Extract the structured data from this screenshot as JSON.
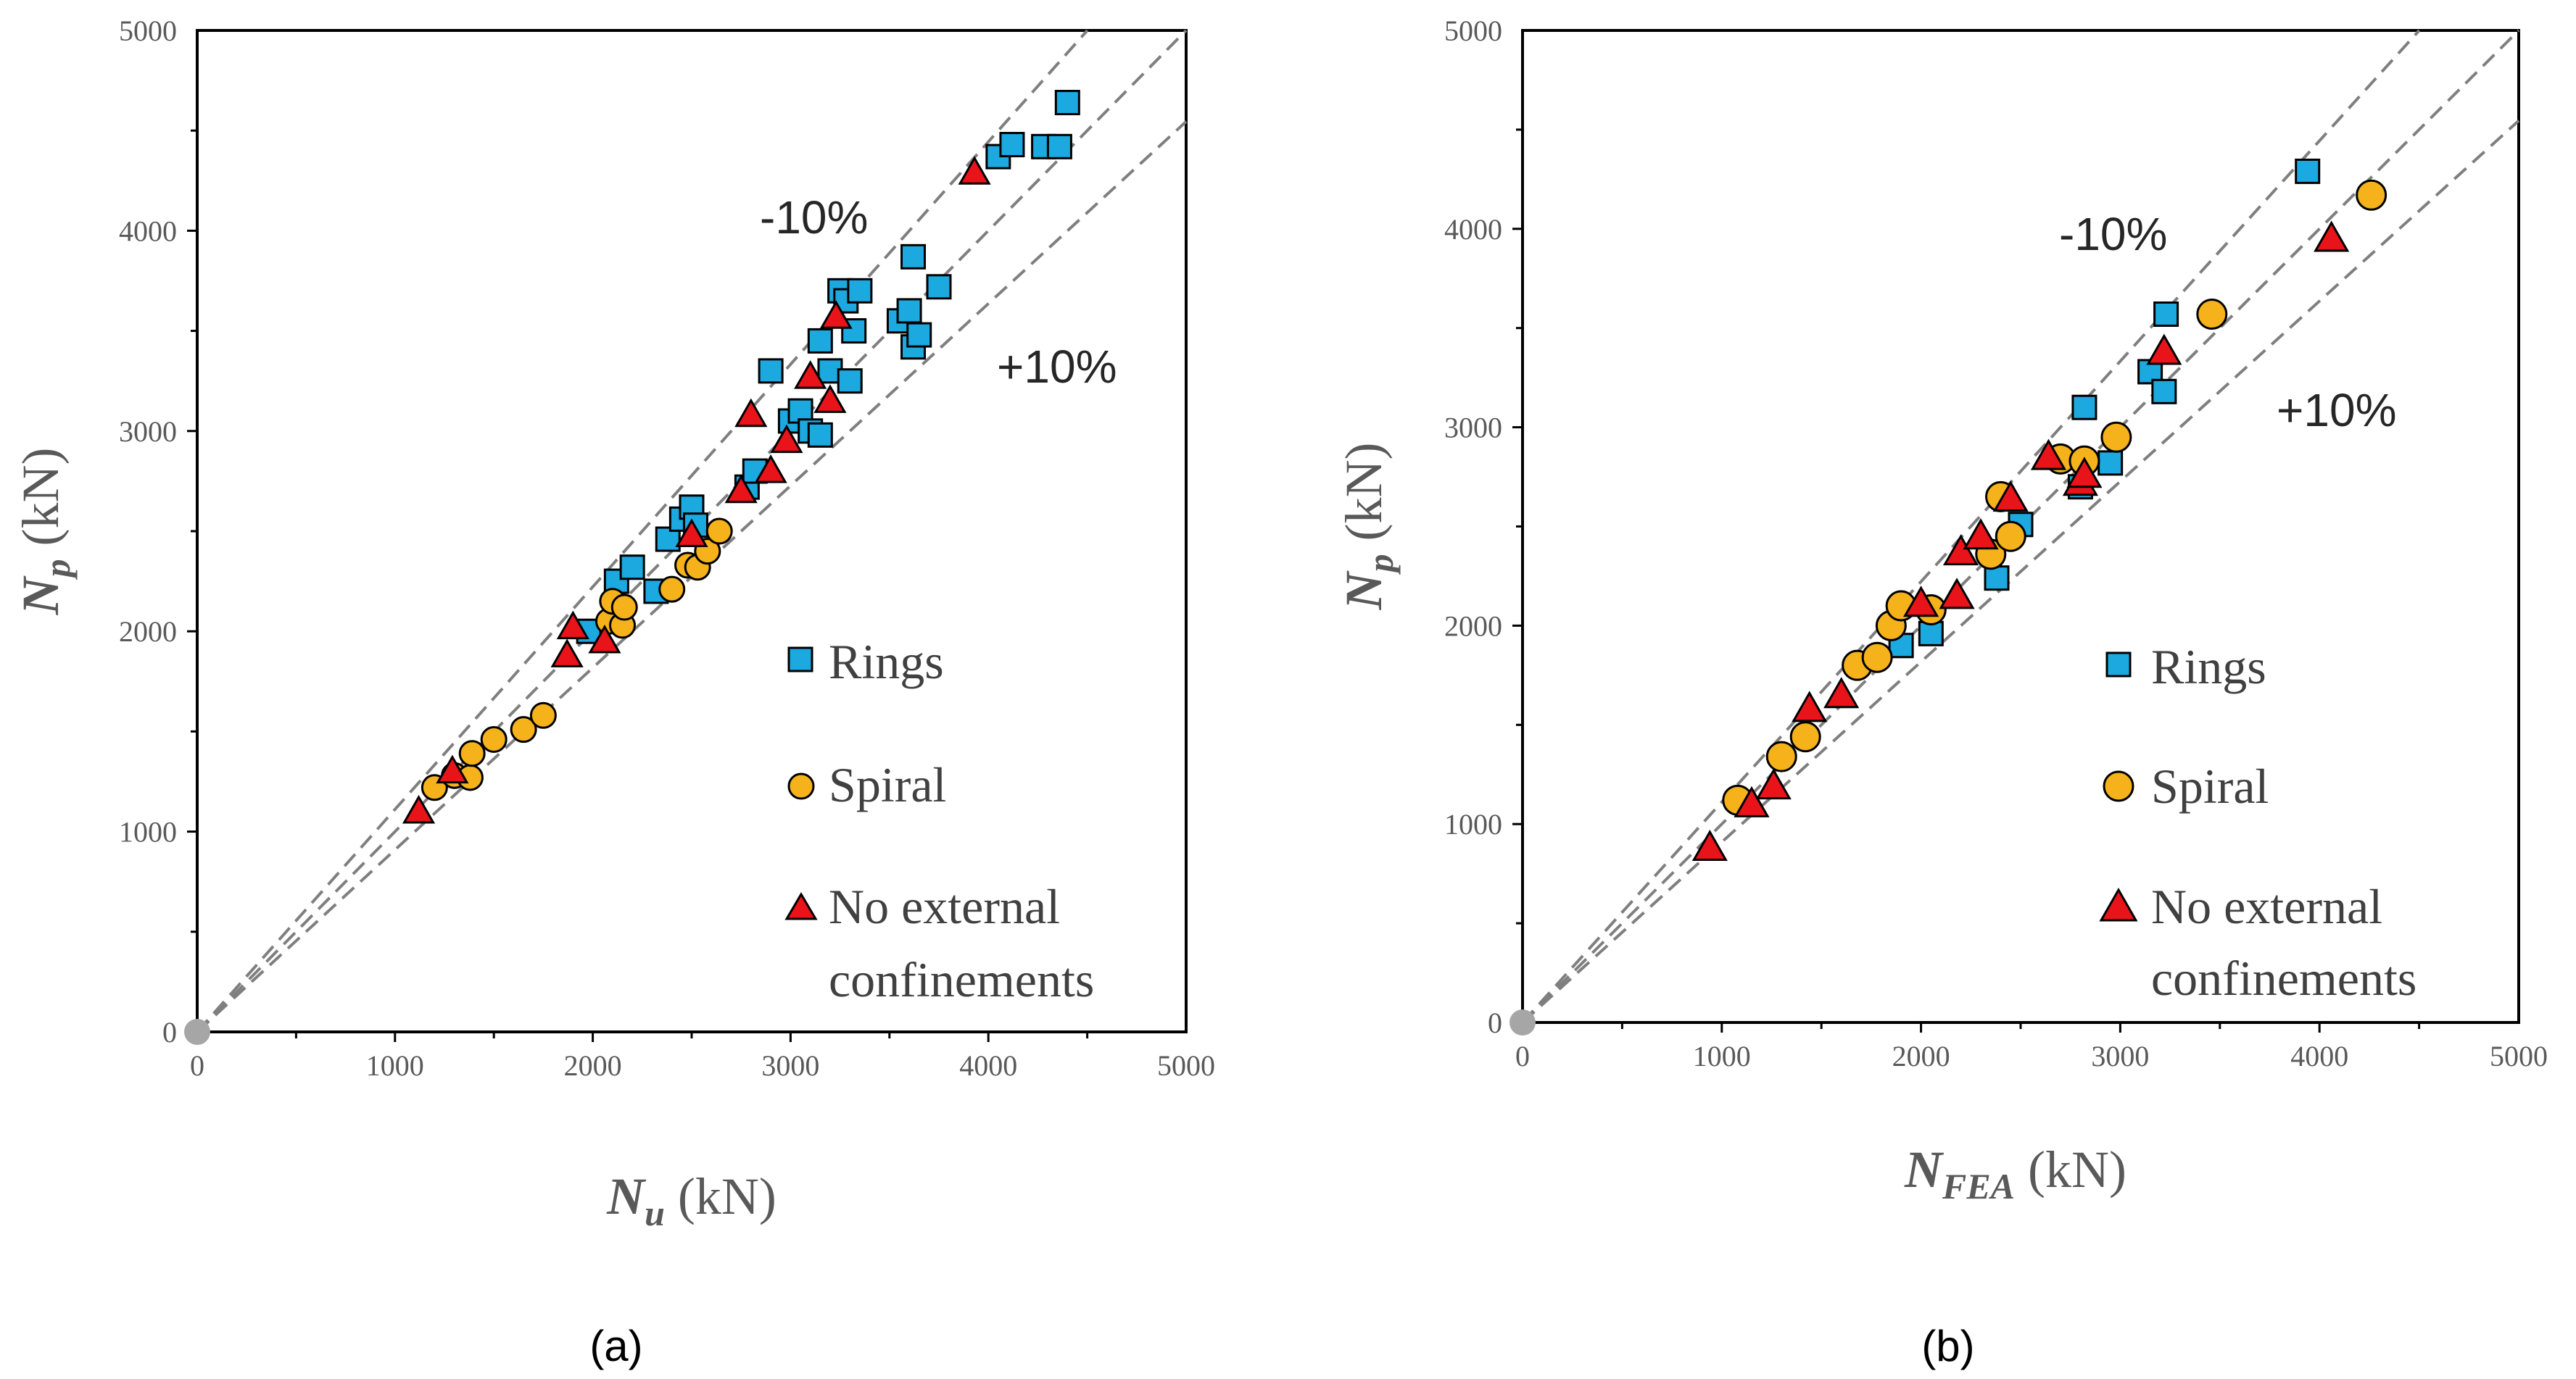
{
  "chart_data": [
    {
      "type": "scatter",
      "panel_label": "(a)",
      "xlabel_symbol": "N",
      "xlabel_sub": "u",
      "xlabel_unit": "(kN)",
      "ylabel_symbol": "N",
      "ylabel_sub": "p",
      "ylabel_unit": "(kN)",
      "xlim": [
        0,
        5000
      ],
      "ylim": [
        0,
        5000
      ],
      "xticks": [
        "0",
        "1000",
        "2000",
        "3000",
        "4000",
        "5000"
      ],
      "yticks": [
        "0",
        "1000",
        "2000",
        "3000",
        "4000",
        "5000"
      ],
      "band_labels": {
        "minus": "-10%",
        "plus": "+10%"
      },
      "reference_lines": [
        {
          "name": "-10%",
          "slope": 1.111
        },
        {
          "name": "equal",
          "slope": 1.0
        },
        {
          "name": "+10%",
          "slope": 0.909
        }
      ],
      "legend": {
        "rings": "Rings",
        "spiral": "Spiral",
        "none_line1": "No external",
        "none_line2": "confinements"
      },
      "series": [
        {
          "name": "Rings",
          "marker": "square",
          "color": "#1ca9e0",
          "points": [
            [
              1980,
              2000
            ],
            [
              2120,
              2250
            ],
            [
              2200,
              2320
            ],
            [
              2320,
              2200
            ],
            [
              2380,
              2460
            ],
            [
              2450,
              2560
            ],
            [
              2500,
              2620
            ],
            [
              2520,
              2530
            ],
            [
              2780,
              2720
            ],
            [
              2820,
              2800
            ],
            [
              2900,
              3300
            ],
            [
              3000,
              3050
            ],
            [
              3050,
              3100
            ],
            [
              3100,
              3000
            ],
            [
              3150,
              2980
            ],
            [
              3150,
              3450
            ],
            [
              3200,
              3300
            ],
            [
              3250,
              3700
            ],
            [
              3280,
              3650
            ],
            [
              3300,
              3250
            ],
            [
              3320,
              3500
            ],
            [
              3350,
              3700
            ],
            [
              3550,
              3550
            ],
            [
              3600,
              3600
            ],
            [
              3620,
              3870
            ],
            [
              3620,
              3420
            ],
            [
              3650,
              3480
            ],
            [
              3750,
              3720
            ],
            [
              4050,
              4370
            ],
            [
              4120,
              4430
            ],
            [
              4280,
              4420
            ],
            [
              4360,
              4420
            ],
            [
              4400,
              4640
            ]
          ]
        },
        {
          "name": "Spiral",
          "marker": "circle",
          "color": "#f5b21b",
          "points": [
            [
              1200,
              1220
            ],
            [
              1300,
              1280
            ],
            [
              1380,
              1270
            ],
            [
              1390,
              1390
            ],
            [
              1500,
              1460
            ],
            [
              1650,
              1510
            ],
            [
              1750,
              1580
            ],
            [
              2080,
              2050
            ],
            [
              2100,
              2150
            ],
            [
              2150,
              2030
            ],
            [
              2160,
              2120
            ],
            [
              2400,
              2210
            ],
            [
              2480,
              2330
            ],
            [
              2530,
              2320
            ],
            [
              2580,
              2400
            ],
            [
              2640,
              2500
            ]
          ]
        },
        {
          "name": "No external confinements",
          "marker": "triangle",
          "color": "#e8141a",
          "points": [
            [
              1120,
              1100
            ],
            [
              1290,
              1300
            ],
            [
              1870,
              1880
            ],
            [
              1900,
              2020
            ],
            [
              2060,
              1950
            ],
            [
              2500,
              2480
            ],
            [
              2750,
              2700
            ],
            [
              2800,
              3080
            ],
            [
              2900,
              2800
            ],
            [
              2980,
              2950
            ],
            [
              3100,
              3270
            ],
            [
              3200,
              3150
            ],
            [
              3230,
              3570
            ],
            [
              3930,
              4290
            ]
          ]
        }
      ]
    },
    {
      "type": "scatter",
      "panel_label": "(b)",
      "xlabel_symbol": "N",
      "xlabel_sub": "FEA",
      "xlabel_unit": "(kN)",
      "ylabel_symbol": "N",
      "ylabel_sub": "p",
      "ylabel_unit": "(kN)",
      "xlim": [
        0,
        5000
      ],
      "ylim": [
        0,
        5000
      ],
      "xticks": [
        "0",
        "1000",
        "2000",
        "3000",
        "4000",
        "5000"
      ],
      "yticks": [
        "0",
        "1000",
        "2000",
        "3000",
        "4000",
        "5000"
      ],
      "band_labels": {
        "minus": "-10%",
        "plus": "+10%"
      },
      "reference_lines": [
        {
          "name": "-10%",
          "slope": 1.111
        },
        {
          "name": "equal",
          "slope": 1.0
        },
        {
          "name": "+10%",
          "slope": 0.909
        }
      ],
      "legend": {
        "rings": "Rings",
        "spiral": "Spiral",
        "none_line1": "No external",
        "none_line2": "confinements"
      },
      "series": [
        {
          "name": "Rings",
          "marker": "square",
          "color": "#1ca9e0",
          "points": [
            [
              1900,
              1900
            ],
            [
              2050,
              1960
            ],
            [
              2380,
              2240
            ],
            [
              2500,
              2510
            ],
            [
              2800,
              2700
            ],
            [
              2820,
              3100
            ],
            [
              2950,
              2820
            ],
            [
              3150,
              3280
            ],
            [
              3220,
              3180
            ],
            [
              3230,
              3570
            ],
            [
              3940,
              4290
            ]
          ]
        },
        {
          "name": "Spiral",
          "marker": "circle",
          "color": "#f5b21b",
          "points": [
            [
              1080,
              1120
            ],
            [
              1300,
              1340
            ],
            [
              1420,
              1440
            ],
            [
              1680,
              1800
            ],
            [
              1780,
              1840
            ],
            [
              1850,
              2000
            ],
            [
              1900,
              2100
            ],
            [
              2050,
              2080
            ],
            [
              2350,
              2360
            ],
            [
              2400,
              2650
            ],
            [
              2450,
              2450
            ],
            [
              2700,
              2840
            ],
            [
              2820,
              2830
            ],
            [
              2980,
              2950
            ],
            [
              3460,
              3570
            ],
            [
              4260,
              4170
            ]
          ]
        },
        {
          "name": "No external confinements",
          "marker": "triangle",
          "color": "#e8141a",
          "points": [
            [
              940,
              880
            ],
            [
              1150,
              1100
            ],
            [
              1260,
              1190
            ],
            [
              1440,
              1580
            ],
            [
              1600,
              1650
            ],
            [
              2000,
              2110
            ],
            [
              2180,
              2150
            ],
            [
              2200,
              2370
            ],
            [
              2300,
              2450
            ],
            [
              2450,
              2640
            ],
            [
              2640,
              2850
            ],
            [
              2800,
              2720
            ],
            [
              2820,
              2760
            ],
            [
              3220,
              3380
            ],
            [
              4060,
              3950
            ]
          ]
        }
      ]
    }
  ]
}
